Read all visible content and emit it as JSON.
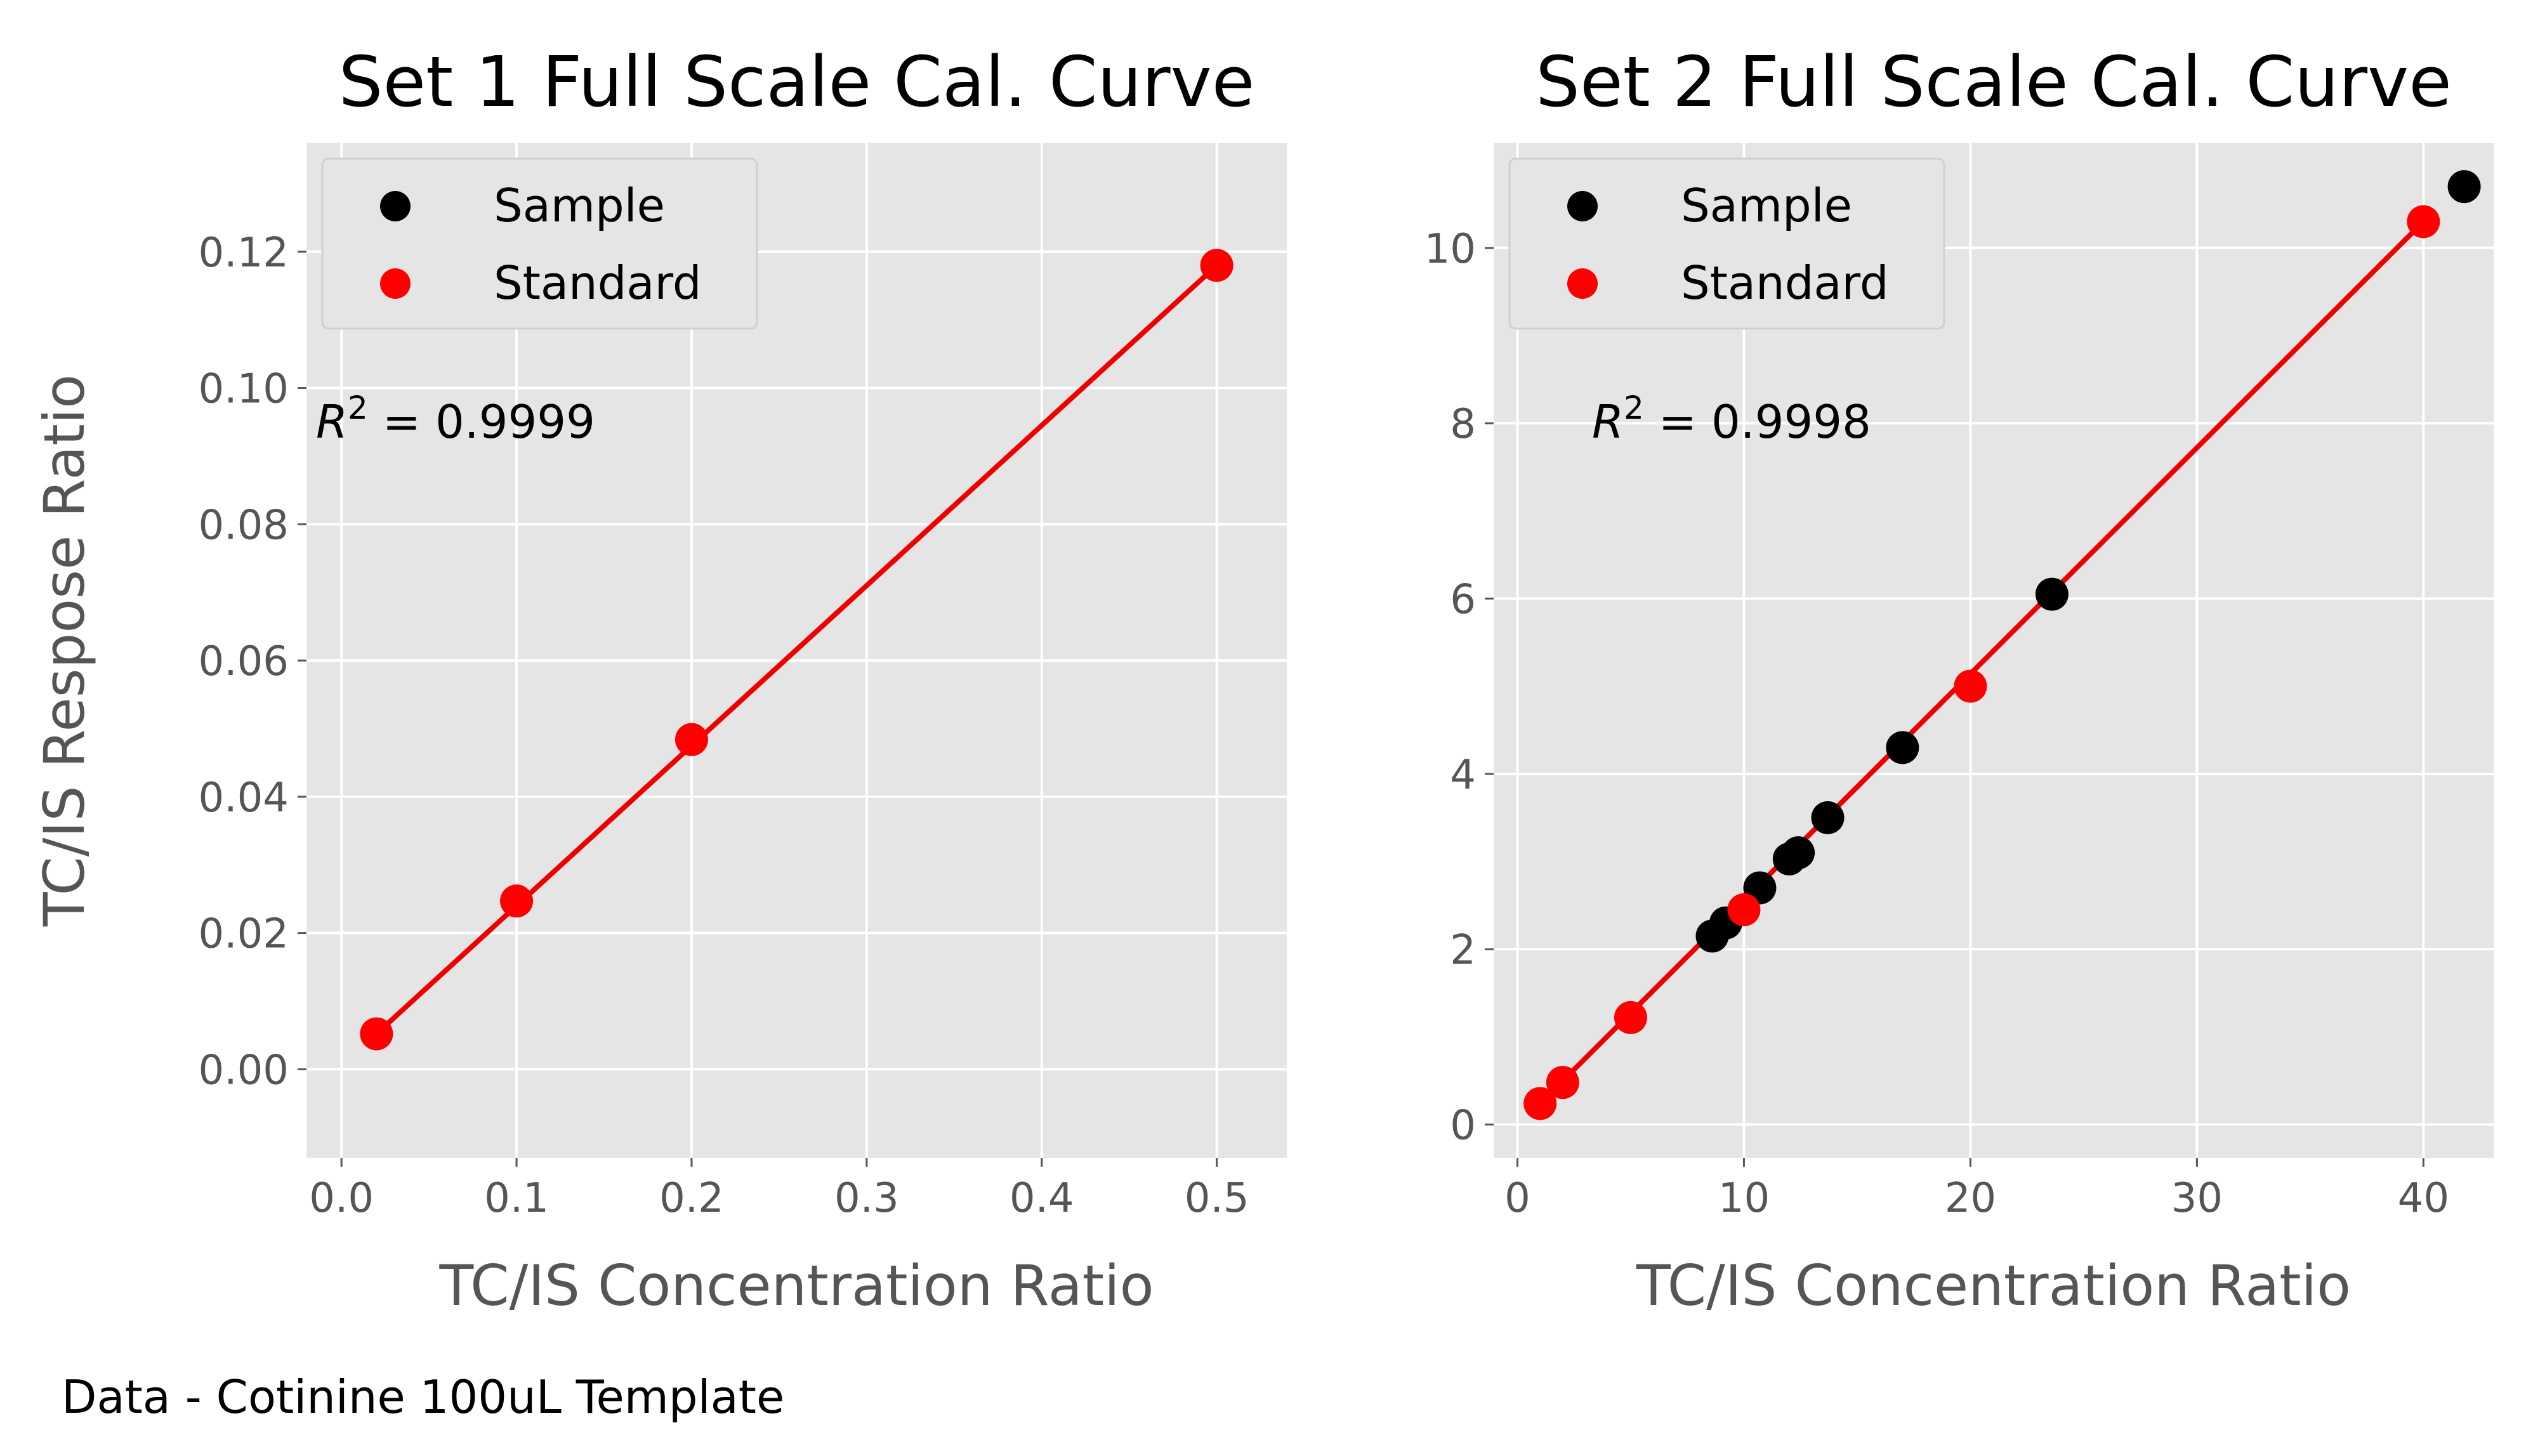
{
  "footer": "Data - Cotinine 100uL Template",
  "colors": {
    "panel_bg": "#e5e5e5",
    "grid": "#ffffff",
    "sample": "#000000",
    "standard": "#ff0000",
    "fit_line": "#ee0000",
    "tick_text": "#555555"
  },
  "chart_data": [
    {
      "type": "scatter",
      "title": "Set 1 Full Scale Cal. Curve",
      "xlabel": "TC/IS Concentration Ratio",
      "ylabel": "TC/IS Respose Ratio",
      "xlim": [
        -0.02,
        0.54
      ],
      "ylim": [
        -0.013,
        0.136
      ],
      "xticks": [
        0.0,
        0.1,
        0.2,
        0.3,
        0.4,
        0.5
      ],
      "xtick_labels": [
        "0.0",
        "0.1",
        "0.2",
        "0.3",
        "0.4",
        "0.5"
      ],
      "yticks": [
        0.0,
        0.02,
        0.04,
        0.06,
        0.08,
        0.1,
        0.12
      ],
      "ytick_labels": [
        "0.00",
        "0.02",
        "0.04",
        "0.06",
        "0.08",
        "0.10",
        "0.12"
      ],
      "grid": true,
      "legend_position": "top-left",
      "annotation": {
        "prefix": "R",
        "sup": "2",
        "suffix": " = 0.9999"
      },
      "series": [
        {
          "name": "Sample",
          "color": "#000000",
          "points": []
        },
        {
          "name": "Standard",
          "color": "#ff0000",
          "points": [
            [
              0.02,
              0.0052
            ],
            [
              0.1,
              0.0247
            ],
            [
              0.2,
              0.0484
            ],
            [
              0.5,
              0.118
            ]
          ]
        }
      ],
      "fit_line": [
        [
          0.02,
          0.0052
        ],
        [
          0.5,
          0.118
        ]
      ]
    },
    {
      "type": "scatter",
      "title": "Set 2 Full Scale Cal. Curve",
      "xlabel": "TC/IS Concentration Ratio",
      "ylabel": "",
      "xlim": [
        -1.05,
        43.1
      ],
      "ylim": [
        -0.38,
        11.2
      ],
      "xticks": [
        0,
        10,
        20,
        30,
        40
      ],
      "xtick_labels": [
        "0",
        "10",
        "20",
        "30",
        "40"
      ],
      "yticks": [
        0,
        2,
        4,
        6,
        8,
        10
      ],
      "ytick_labels": [
        "0",
        "2",
        "4",
        "6",
        "8",
        "10"
      ],
      "grid": true,
      "legend_position": "top-left",
      "annotation": {
        "prefix": "R",
        "sup": "2",
        "suffix": " = 0.9998"
      },
      "series": [
        {
          "name": "Sample",
          "color": "#000000",
          "points": [
            [
              8.6,
              2.15
            ],
            [
              9.2,
              2.3
            ],
            [
              10.7,
              2.7
            ],
            [
              12.0,
              3.03
            ],
            [
              12.4,
              3.1
            ],
            [
              13.7,
              3.5
            ],
            [
              17.0,
              4.3
            ],
            [
              23.6,
              6.05
            ],
            [
              41.8,
              10.7
            ]
          ]
        },
        {
          "name": "Standard",
          "color": "#ff0000",
          "points": [
            [
              1.0,
              0.24
            ],
            [
              2.0,
              0.48
            ],
            [
              5.0,
              1.22
            ],
            [
              10.0,
              2.45
            ],
            [
              20.0,
              5.0
            ],
            [
              40.0,
              10.3
            ]
          ]
        }
      ],
      "fit_line": [
        [
          1.0,
          0.24
        ],
        [
          40.0,
          10.3
        ]
      ]
    }
  ]
}
